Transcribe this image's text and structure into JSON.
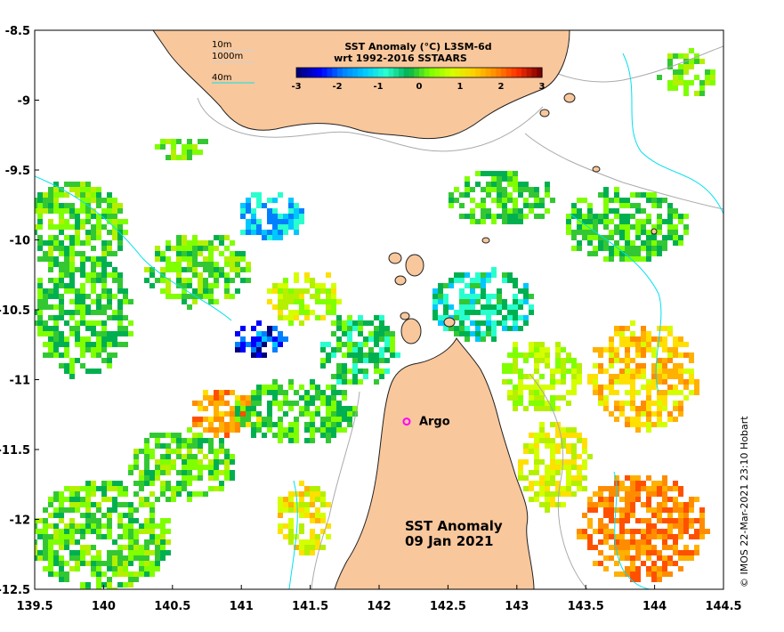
{
  "map": {
    "title_line1": "SST Anomaly (°C) L3SM-6d",
    "title_line2": "wrt 1992-2016 SSTAARS",
    "annotation_line1": "SST Anomaly",
    "annotation_line2": "09 Jan 2021",
    "argo_label": "Argo",
    "credit": "© IMOS 22-Mar-2021 23:10 Hobart",
    "lon_range": [
      139.5,
      144.5
    ],
    "lat_range": [
      -12.5,
      -8.5
    ],
    "x_ticks": [
      "139.5",
      "140",
      "140.5",
      "141",
      "141.5",
      "142",
      "142.5",
      "143",
      "143.5",
      "144",
      "144.5"
    ],
    "y_ticks": [
      "-8.5",
      "-9",
      "-9.5",
      "-10",
      "-10.5",
      "-11",
      "-11.5",
      "-12",
      "-12.5"
    ],
    "argo_position": {
      "lon": 142.2,
      "lat": -11.3
    },
    "colorbar": {
      "ticks": [
        "-3",
        "-2",
        "-1",
        "0",
        "1",
        "2",
        "3"
      ],
      "range": [
        -3,
        3
      ],
      "colors": [
        "#00007f",
        "#0000ff",
        "#0080ff",
        "#00c8ff",
        "#29ffce",
        "#00b050",
        "#7fff00",
        "#d4ff00",
        "#ffd000",
        "#ff8c00",
        "#ff3000",
        "#7f0000"
      ]
    },
    "depth_legend": [
      {
        "label": "10m",
        "color": "#cfcfcf"
      },
      {
        "label": "1000m",
        "color": "#cfcfcf"
      },
      {
        "label": "40m",
        "color": "#00e5ee"
      }
    ],
    "colors": {
      "land": "#f8c79c",
      "coast": "#202020",
      "depth_contour": "#aaaaaa",
      "deep_contour": "#00e0ee",
      "argo": "#ff00ff"
    }
  }
}
